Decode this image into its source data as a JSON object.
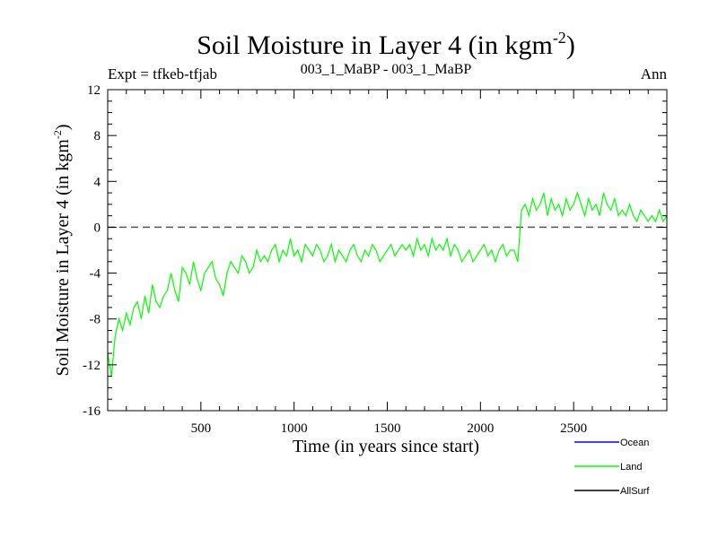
{
  "chart_data": {
    "type": "line",
    "title": "Soil Moisture in Layer 4 (in kgm",
    "title_sup": "-2",
    "title_close": ")",
    "subtitle_left": "Expt = tfkeb-tfjab",
    "subtitle_center": "003_1_MaBP - 003_1_MaBP",
    "subtitle_right": "Ann",
    "xlabel": "Time (in years since start)",
    "ylabel": "Soil Moisture in Layer 4 (in kgm",
    "ylabel_sup": "-2",
    "ylabel_close": ")",
    "xlim": [
      0,
      3000
    ],
    "ylim": [
      -16,
      12
    ],
    "xticks": [
      500,
      1000,
      1500,
      2000,
      2500
    ],
    "yticks": [
      12,
      8,
      4,
      0,
      -4,
      -8,
      -12,
      -16
    ],
    "zero_line": {
      "y": 0,
      "style": "dashed",
      "color": "#555555"
    },
    "series": [
      {
        "name": "Ocean",
        "color": "#0000ff",
        "values": []
      },
      {
        "name": "Land",
        "color": "#00ff00",
        "x_start": 0,
        "x_step": 20,
        "values": [
          -11,
          -13,
          -9.5,
          -8,
          -9,
          -7.5,
          -8.5,
          -7,
          -6.5,
          -8,
          -6,
          -7.5,
          -5,
          -6.5,
          -7,
          -6,
          -5.5,
          -4,
          -5.5,
          -6.5,
          -3.5,
          -4,
          -5,
          -3,
          -4.5,
          -5.5,
          -4,
          -3.5,
          -3,
          -4.5,
          -5,
          -6,
          -4,
          -3,
          -3.5,
          -4,
          -2.5,
          -3,
          -4,
          -3.5,
          -2,
          -3,
          -2.5,
          -3,
          -2,
          -1.5,
          -3,
          -2,
          -2.5,
          -1,
          -2.5,
          -2,
          -3,
          -1.5,
          -2,
          -2.5,
          -1.5,
          -2,
          -3,
          -2.5,
          -1.5,
          -3,
          -2,
          -2.5,
          -3,
          -2,
          -1.5,
          -2.5,
          -3,
          -2,
          -2.5,
          -1.5,
          -2,
          -3,
          -2.5,
          -2,
          -1.5,
          -2.5,
          -2,
          -1.5,
          -2,
          -1.5,
          -2.5,
          -1,
          -2,
          -1.5,
          -2.5,
          -1,
          -2,
          -1.5,
          -2,
          -1,
          -2.5,
          -1.5,
          -2,
          -3,
          -2.5,
          -2,
          -3,
          -2.5,
          -2,
          -1.5,
          -2.5,
          -2,
          -3,
          -2,
          -1.5,
          -2.5,
          -2,
          -2,
          -3,
          1.5,
          2,
          1,
          2.5,
          1.5,
          2,
          3,
          1,
          2.5,
          1.5,
          2,
          1,
          2.5,
          1.5,
          2,
          3,
          2,
          1,
          2.5,
          1.5,
          2,
          1,
          3,
          2,
          1.5,
          2.5,
          1,
          1.5,
          1,
          2,
          1,
          0.5,
          1.5,
          1,
          0.5,
          1,
          0.5,
          1.5,
          0.5,
          1
        ]
      },
      {
        "name": "AllSurf",
        "color": "#000000",
        "values": []
      }
    ],
    "legend_position": "bottom-right",
    "grid": false
  }
}
